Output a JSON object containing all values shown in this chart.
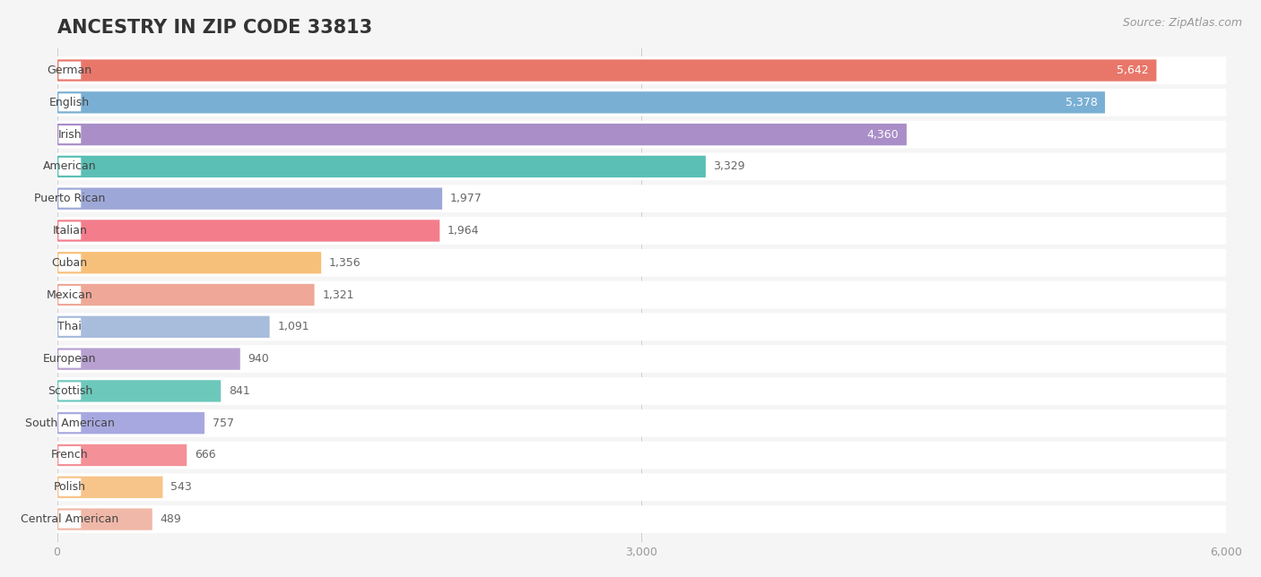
{
  "title": "ANCESTRY IN ZIP CODE 33813",
  "source": "Source: ZipAtlas.com",
  "categories": [
    "German",
    "English",
    "Irish",
    "American",
    "Puerto Rican",
    "Italian",
    "Cuban",
    "Mexican",
    "Thai",
    "European",
    "Scottish",
    "South American",
    "French",
    "Polish",
    "Central American"
  ],
  "values": [
    5642,
    5378,
    4360,
    3329,
    1977,
    1964,
    1356,
    1321,
    1091,
    940,
    841,
    757,
    666,
    543,
    489
  ],
  "colors": [
    "#E8776A",
    "#7AAFD4",
    "#A98EC8",
    "#5BBFB5",
    "#9EA8D8",
    "#F47D8C",
    "#F7C07A",
    "#EFA898",
    "#A8BCDC",
    "#B8A0D0",
    "#6DC8BC",
    "#A8A8E0",
    "#F49098",
    "#F7C48A",
    "#F0B8A8"
  ],
  "xlim": [
    0,
    6000
  ],
  "xticks": [
    0,
    3000,
    6000
  ],
  "background_color": "#f5f5f5",
  "bar_background": "#ffffff",
  "title_fontsize": 15,
  "source_fontsize": 9,
  "label_fontsize": 9,
  "value_fontsize": 9,
  "bar_height": 0.68
}
